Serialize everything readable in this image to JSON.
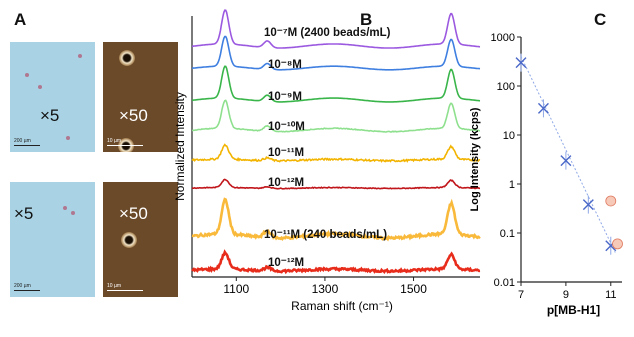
{
  "panels": {
    "a": "A",
    "b": "B",
    "c": "C"
  },
  "micrographs": [
    {
      "mag": "×5",
      "scale": "200 µm",
      "bg": "#a9d3e4",
      "dark": false,
      "particles": 4
    },
    {
      "mag": "×50",
      "scale": "10 µm",
      "bg": "#6b4a2a",
      "dark": true,
      "particles": 2
    },
    {
      "mag": "×5",
      "scale": "200 µm",
      "bg": "#a9d3e4",
      "dark": false,
      "particles": 2
    },
    {
      "mag": "×50",
      "scale": "10 µm",
      "bg": "#6b4a2a",
      "dark": true,
      "particles": 1
    }
  ],
  "chart_data": [
    {
      "type": "line",
      "panel": "B",
      "xlabel": "Raman shift (cm⁻¹)",
      "ylabel": "Normalized Intensity",
      "xlim": [
        1000,
        1650
      ],
      "xticks": [
        1100,
        1300,
        1500
      ],
      "series": [
        {
          "name": "10⁻⁷M (2400 beads/mL)",
          "color": "#9b59e0",
          "noise": 0.0
        },
        {
          "name": "10⁻⁸M",
          "color": "#3f7fe0",
          "noise": 0.0
        },
        {
          "name": "10⁻⁹M",
          "color": "#39b54a",
          "noise": 0.0
        },
        {
          "name": "10⁻¹⁰M",
          "color": "#8ee08e",
          "noise": 0.1
        },
        {
          "name": "10⁻¹¹M",
          "color": "#f2b400",
          "noise": 0.5
        },
        {
          "name": "10⁻¹²M",
          "color": "#c0151a",
          "noise": 0.4
        },
        {
          "name": "10⁻¹¹M (240 beads/mL)",
          "color": "#f9b93a",
          "noise": 0.3
        },
        {
          "name": "10⁻¹²M",
          "color": "#e82c1b",
          "noise": 0.6
        }
      ]
    },
    {
      "type": "scatter",
      "panel": "C",
      "xlabel": "p[MB-H1]",
      "ylabel": "Log Intensity (kcps)",
      "yscale": "log",
      "xlim": [
        7,
        11.5
      ],
      "ylim": [
        0.01,
        1000
      ],
      "xticks": [
        7,
        9,
        11
      ],
      "yticks": [
        "0.01",
        "0.1",
        "1",
        "10",
        "100",
        "1000"
      ],
      "x": [
        7,
        8,
        9,
        10,
        11
      ],
      "y": [
        300,
        35,
        3,
        0.38,
        0.055
      ],
      "outliers": {
        "x": [
          11,
          11.3
        ],
        "y": [
          0.45,
          0.06
        ]
      },
      "fit": {
        "x": [
          7,
          11.2
        ],
        "y": [
          400,
          0.04
        ]
      }
    }
  ]
}
